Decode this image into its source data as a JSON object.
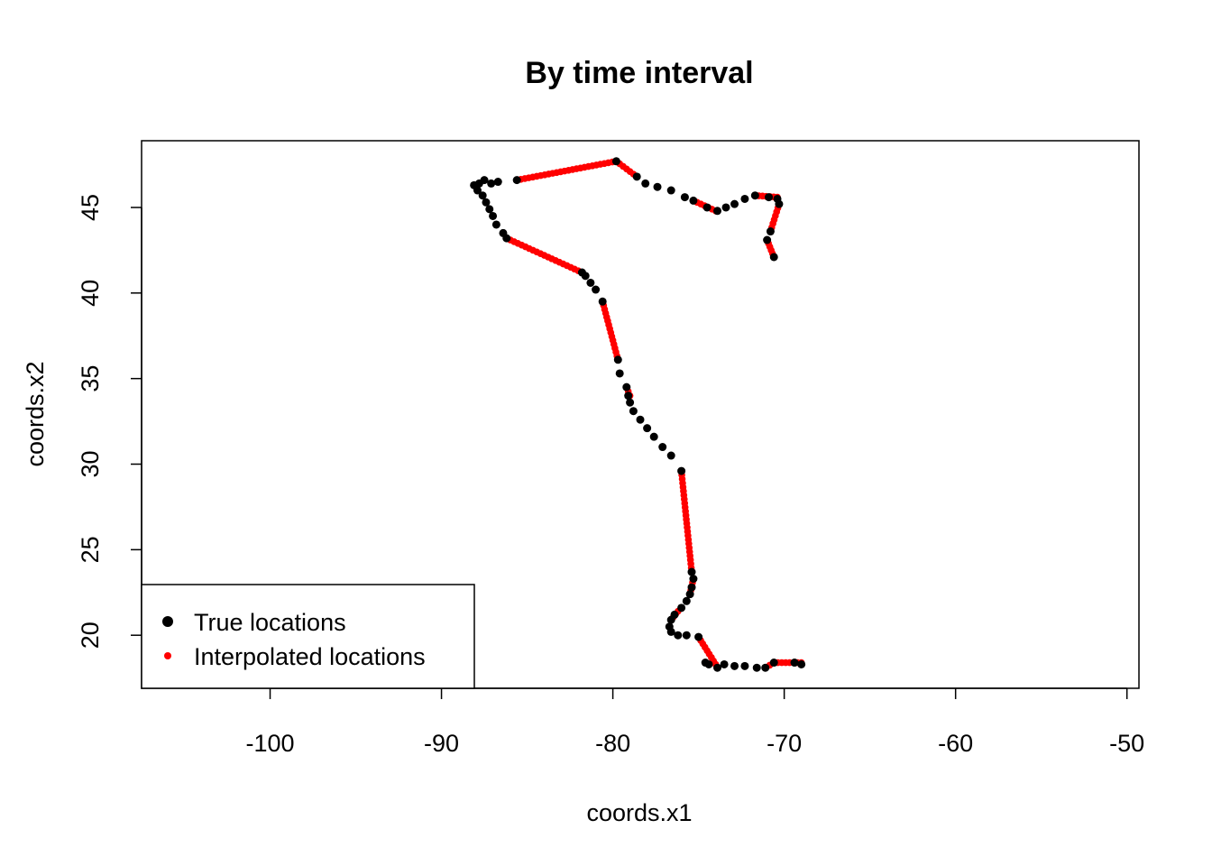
{
  "chart_data": {
    "type": "scatter",
    "title": "By time interval",
    "xlabel": "coords.x1",
    "ylabel": "coords.x2",
    "xlim": [
      -107.5,
      -49.3
    ],
    "ylim": [
      16.9,
      48.9
    ],
    "x_ticks": [
      -100,
      -90,
      -80,
      -70,
      -60,
      -50
    ],
    "y_ticks": [
      20,
      25,
      30,
      35,
      40,
      45
    ],
    "grid": false,
    "legend_position": "bottom-left",
    "series": [
      {
        "name": "True locations",
        "color": "#000000",
        "points": [
          [
            -69.0,
            18.3
          ],
          [
            -69.4,
            18.4
          ],
          [
            -70.6,
            18.4
          ],
          [
            -71.1,
            18.1
          ],
          [
            -71.6,
            18.1
          ],
          [
            -72.3,
            18.2
          ],
          [
            -72.9,
            18.2
          ],
          [
            -73.5,
            18.3
          ],
          [
            -73.9,
            18.1
          ],
          [
            -74.4,
            18.3
          ],
          [
            -74.6,
            18.4
          ],
          [
            -75.0,
            19.9
          ],
          [
            -75.7,
            20.0
          ],
          [
            -76.2,
            20.0
          ],
          [
            -76.6,
            20.2
          ],
          [
            -76.7,
            20.5
          ],
          [
            -76.6,
            20.9
          ],
          [
            -76.4,
            21.2
          ],
          [
            -76.0,
            21.6
          ],
          [
            -75.7,
            22.0
          ],
          [
            -75.5,
            22.4
          ],
          [
            -75.4,
            22.8
          ],
          [
            -75.3,
            23.3
          ],
          [
            -75.4,
            23.7
          ],
          [
            -76.0,
            29.6
          ],
          [
            -76.6,
            30.5
          ],
          [
            -77.1,
            31.0
          ],
          [
            -77.6,
            31.6
          ],
          [
            -78.0,
            32.1
          ],
          [
            -78.4,
            32.6
          ],
          [
            -78.8,
            33.1
          ],
          [
            -79.0,
            33.6
          ],
          [
            -79.1,
            34.0
          ],
          [
            -79.2,
            34.5
          ],
          [
            -79.6,
            35.3
          ],
          [
            -79.7,
            36.1
          ],
          [
            -80.6,
            39.5
          ],
          [
            -81.0,
            40.2
          ],
          [
            -81.3,
            40.6
          ],
          [
            -81.6,
            41.0
          ],
          [
            -81.8,
            41.2
          ],
          [
            -86.2,
            43.2
          ],
          [
            -86.4,
            43.5
          ],
          [
            -86.8,
            44.0
          ],
          [
            -87.0,
            44.5
          ],
          [
            -87.2,
            44.9
          ],
          [
            -87.4,
            45.3
          ],
          [
            -87.6,
            45.7
          ],
          [
            -87.9,
            46.0
          ],
          [
            -88.1,
            46.3
          ],
          [
            -87.8,
            46.4
          ],
          [
            -87.5,
            46.6
          ],
          [
            -87.1,
            46.4
          ],
          [
            -86.7,
            46.5
          ],
          [
            -85.6,
            46.6
          ],
          [
            -79.8,
            47.7
          ],
          [
            -78.6,
            46.8
          ],
          [
            -78.1,
            46.4
          ],
          [
            -77.4,
            46.2
          ],
          [
            -76.6,
            46.0
          ],
          [
            -75.8,
            45.6
          ],
          [
            -75.3,
            45.4
          ],
          [
            -74.5,
            45.0
          ],
          [
            -73.9,
            44.8
          ],
          [
            -73.4,
            45.0
          ],
          [
            -72.9,
            45.2
          ],
          [
            -72.3,
            45.5
          ],
          [
            -71.7,
            45.7
          ],
          [
            -70.9,
            45.6
          ],
          [
            -70.4,
            45.5
          ],
          [
            -70.3,
            45.2
          ],
          [
            -70.8,
            43.6
          ],
          [
            -71.0,
            43.1
          ],
          [
            -70.6,
            42.1
          ]
        ]
      },
      {
        "name": "Interpolated locations",
        "color": "#ff0000",
        "segments": [
          [
            [
              -69.0,
              18.4
            ],
            [
              -70.6,
              18.4
            ]
          ],
          [
            [
              -70.6,
              18.4
            ],
            [
              -71.1,
              18.1
            ]
          ],
          [
            [
              -74.0,
              18.3
            ],
            [
              -75.0,
              19.9
            ]
          ],
          [
            [
              -75.4,
              23.7
            ],
            [
              -76.0,
              29.6
            ]
          ],
          [
            [
              -79.7,
              36.1
            ],
            [
              -80.6,
              39.5
            ]
          ],
          [
            [
              -79.2,
              34.5
            ],
            [
              -79.0,
              34.0
            ]
          ],
          [
            [
              -81.8,
              41.2
            ],
            [
              -86.2,
              43.2
            ]
          ],
          [
            [
              -85.6,
              46.6
            ],
            [
              -79.8,
              47.7
            ]
          ],
          [
            [
              -79.8,
              47.7
            ],
            [
              -78.6,
              46.8
            ]
          ],
          [
            [
              -75.3,
              45.4
            ],
            [
              -74.0,
              44.8
            ]
          ],
          [
            [
              -71.7,
              45.7
            ],
            [
              -70.4,
              45.6
            ]
          ],
          [
            [
              -70.3,
              45.2
            ],
            [
              -70.8,
              43.6
            ]
          ],
          [
            [
              -71.0,
              43.1
            ],
            [
              -70.6,
              42.1
            ]
          ],
          [
            [
              -76.6,
              20.9
            ],
            [
              -76.2,
              21.4
            ]
          ],
          [
            [
              -75.5,
              22.4
            ],
            [
              -75.3,
              23.3
            ]
          ]
        ]
      }
    ]
  }
}
